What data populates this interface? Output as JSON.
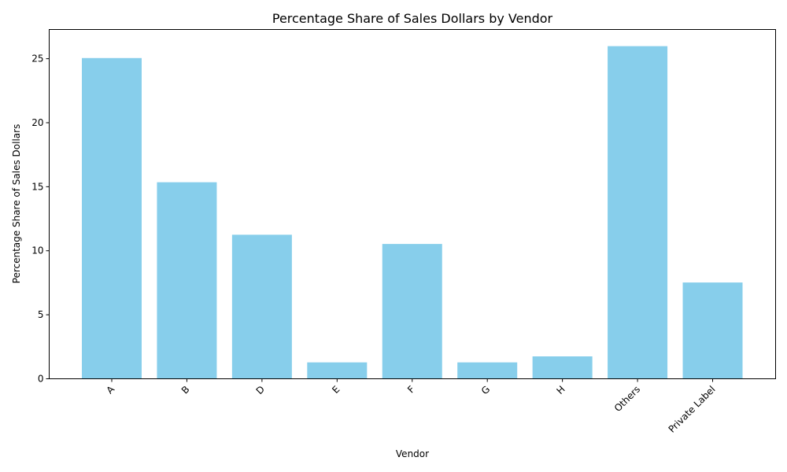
{
  "chart_data": {
    "type": "bar",
    "title": "Percentage Share of Sales Dollars by Vendor",
    "xlabel": "Vendor",
    "ylabel": "Percentage Share of Sales Dollars",
    "categories": [
      "A",
      "B",
      "D",
      "E",
      "F",
      "G",
      "H",
      "Others",
      "Private Label"
    ],
    "values": [
      25.05,
      15.35,
      11.25,
      1.28,
      10.53,
      1.28,
      1.75,
      25.98,
      7.52
    ],
    "ylim": [
      0,
      27.28
    ],
    "yticks": [
      0,
      5,
      10,
      15,
      20,
      25
    ],
    "bar_color": "#87ceeb",
    "grid": false,
    "legend": "none",
    "x_tick_rotation": 45
  }
}
